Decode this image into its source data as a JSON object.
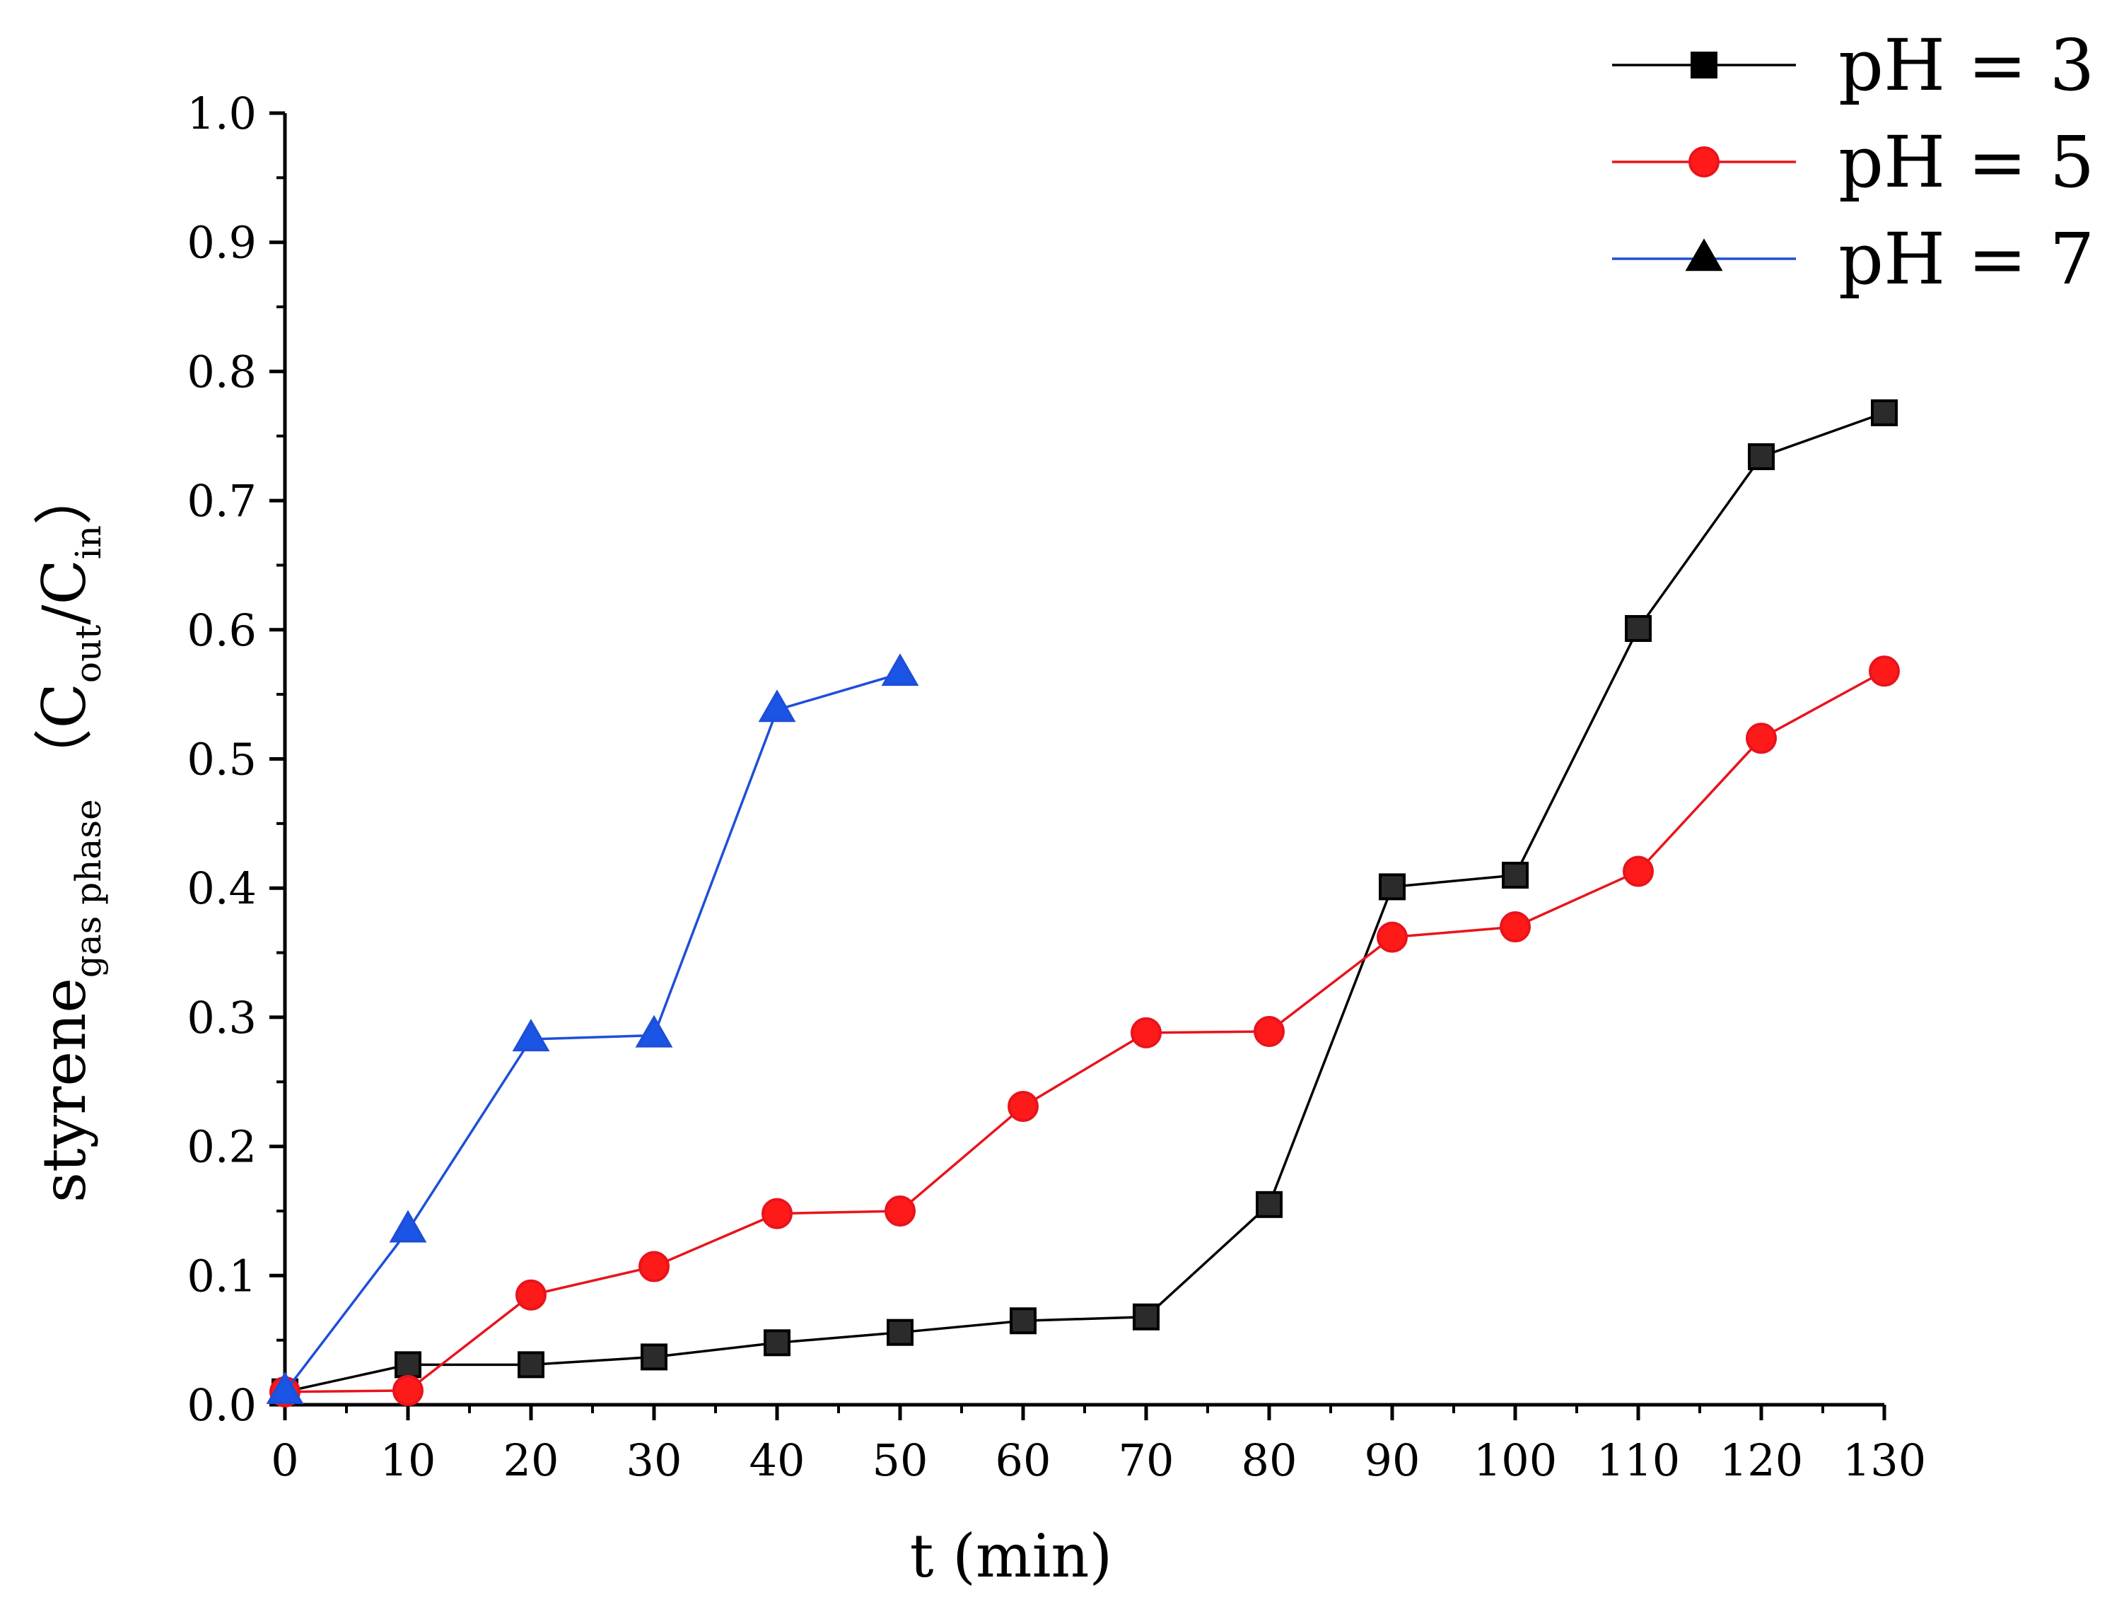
{
  "chart_data": {
    "type": "line",
    "title": "",
    "xlabel": "t (min)",
    "ylabel": {
      "main": "styrene",
      "main_subscript": "gas phase",
      "paren_open": "（C",
      "out_subscript": "out",
      "slash": "/C",
      "in_subscript": "in",
      "paren_close": "）"
    },
    "xlim": [
      0,
      130
    ],
    "ylim": [
      0.0,
      1.0
    ],
    "xticks": [
      0,
      10,
      20,
      30,
      40,
      50,
      60,
      70,
      80,
      90,
      100,
      110,
      120,
      130
    ],
    "yticks": [
      "0.0",
      "0.1",
      "0.2",
      "0.3",
      "0.4",
      "0.5",
      "0.6",
      "0.7",
      "0.8",
      "0.9",
      "1.0"
    ],
    "legend_position": "top-right",
    "grid": false,
    "series": [
      {
        "name": "pH = 3",
        "color": "#000000",
        "fill": "#2b2b2b",
        "marker": "square",
        "legend_marker_fill": "#000000",
        "x": [
          0,
          10,
          20,
          30,
          40,
          50,
          60,
          70,
          80,
          90,
          100,
          110,
          120,
          130
        ],
        "y": [
          0.01,
          0.031,
          0.031,
          0.037,
          0.048,
          0.056,
          0.065,
          0.068,
          0.155,
          0.401,
          0.41,
          0.601,
          0.734,
          0.768
        ]
      },
      {
        "name": "pH = 5",
        "color": "#e8141c",
        "fill": "#ff1a1a",
        "marker": "circle",
        "legend_marker_fill": "#ff1a1a",
        "x": [
          0,
          10,
          20,
          30,
          40,
          50,
          60,
          70,
          80,
          90,
          100,
          110,
          120,
          130
        ],
        "y": [
          0.01,
          0.011,
          0.085,
          0.107,
          0.148,
          0.15,
          0.231,
          0.288,
          0.289,
          0.362,
          0.37,
          0.413,
          0.516,
          0.568
        ]
      },
      {
        "name": "pH = 7",
        "color": "#1f4fd8",
        "fill": "#1a55e6",
        "marker": "triangle",
        "legend_marker_fill": "#000000",
        "x": [
          0,
          10,
          20,
          30,
          40,
          50
        ],
        "y": [
          0.01,
          0.135,
          0.283,
          0.286,
          0.538,
          0.566
        ]
      }
    ]
  }
}
